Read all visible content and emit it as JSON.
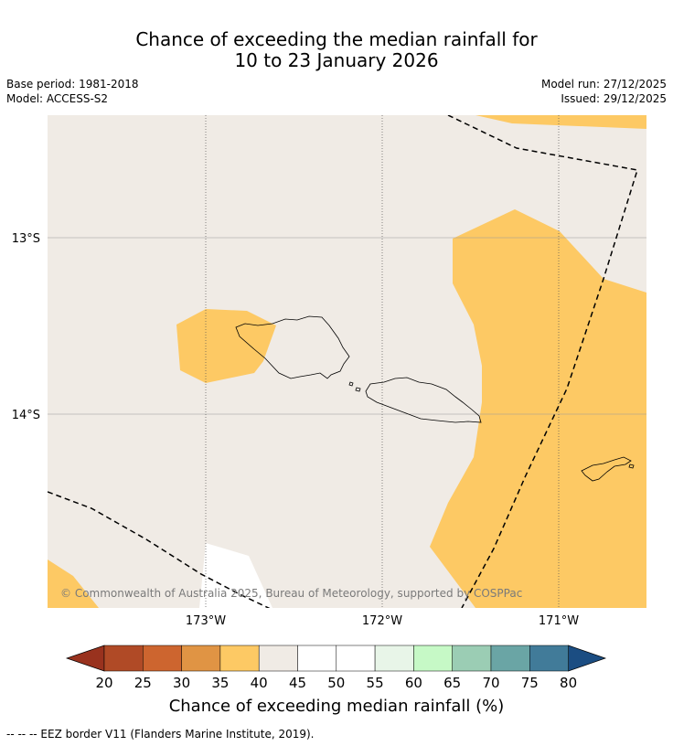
{
  "title": {
    "line1": "Chance of exceeding the median rainfall for",
    "line2": "10 to 23 January 2026"
  },
  "meta": {
    "base_period": "Base period: 1981-2018",
    "model": "Model: ACCESS-S2",
    "model_run": "Model run: 27/12/2025",
    "issued": "Issued: 29/12/2025"
  },
  "map": {
    "lat_labels": [
      "13°S",
      "14°S"
    ],
    "lon_labels": [
      "173°W",
      "172°W",
      "171°W"
    ],
    "copyright": "© Commonwealth of Australia 2025, Bureau of Meteorology, supported by COSPPac",
    "background_color": "#f0ebe5",
    "category_colors": {
      "35-40": "#fdc964",
      "45-55": "#ffffff"
    }
  },
  "colorbar": {
    "ticks": [
      "20",
      "25",
      "30",
      "35",
      "40",
      "45",
      "50",
      "55",
      "60",
      "65",
      "70",
      "75",
      "80"
    ],
    "colors": [
      "#b04a26",
      "#cd652f",
      "#e09444",
      "#fdc964",
      "#f0ebe5",
      "#ffffff",
      "#ffffff",
      "#e8f5e8",
      "#c6f9c6",
      "#9bcdb4",
      "#6aa5a5",
      "#417b99"
    ],
    "under_color": "#99321e",
    "over_color": "#1b4d82",
    "label": "Chance of exceeding median rainfall (%)"
  },
  "footnote": "--  --  -- EEZ border V11 (Flanders Marine Institute, 2019)."
}
